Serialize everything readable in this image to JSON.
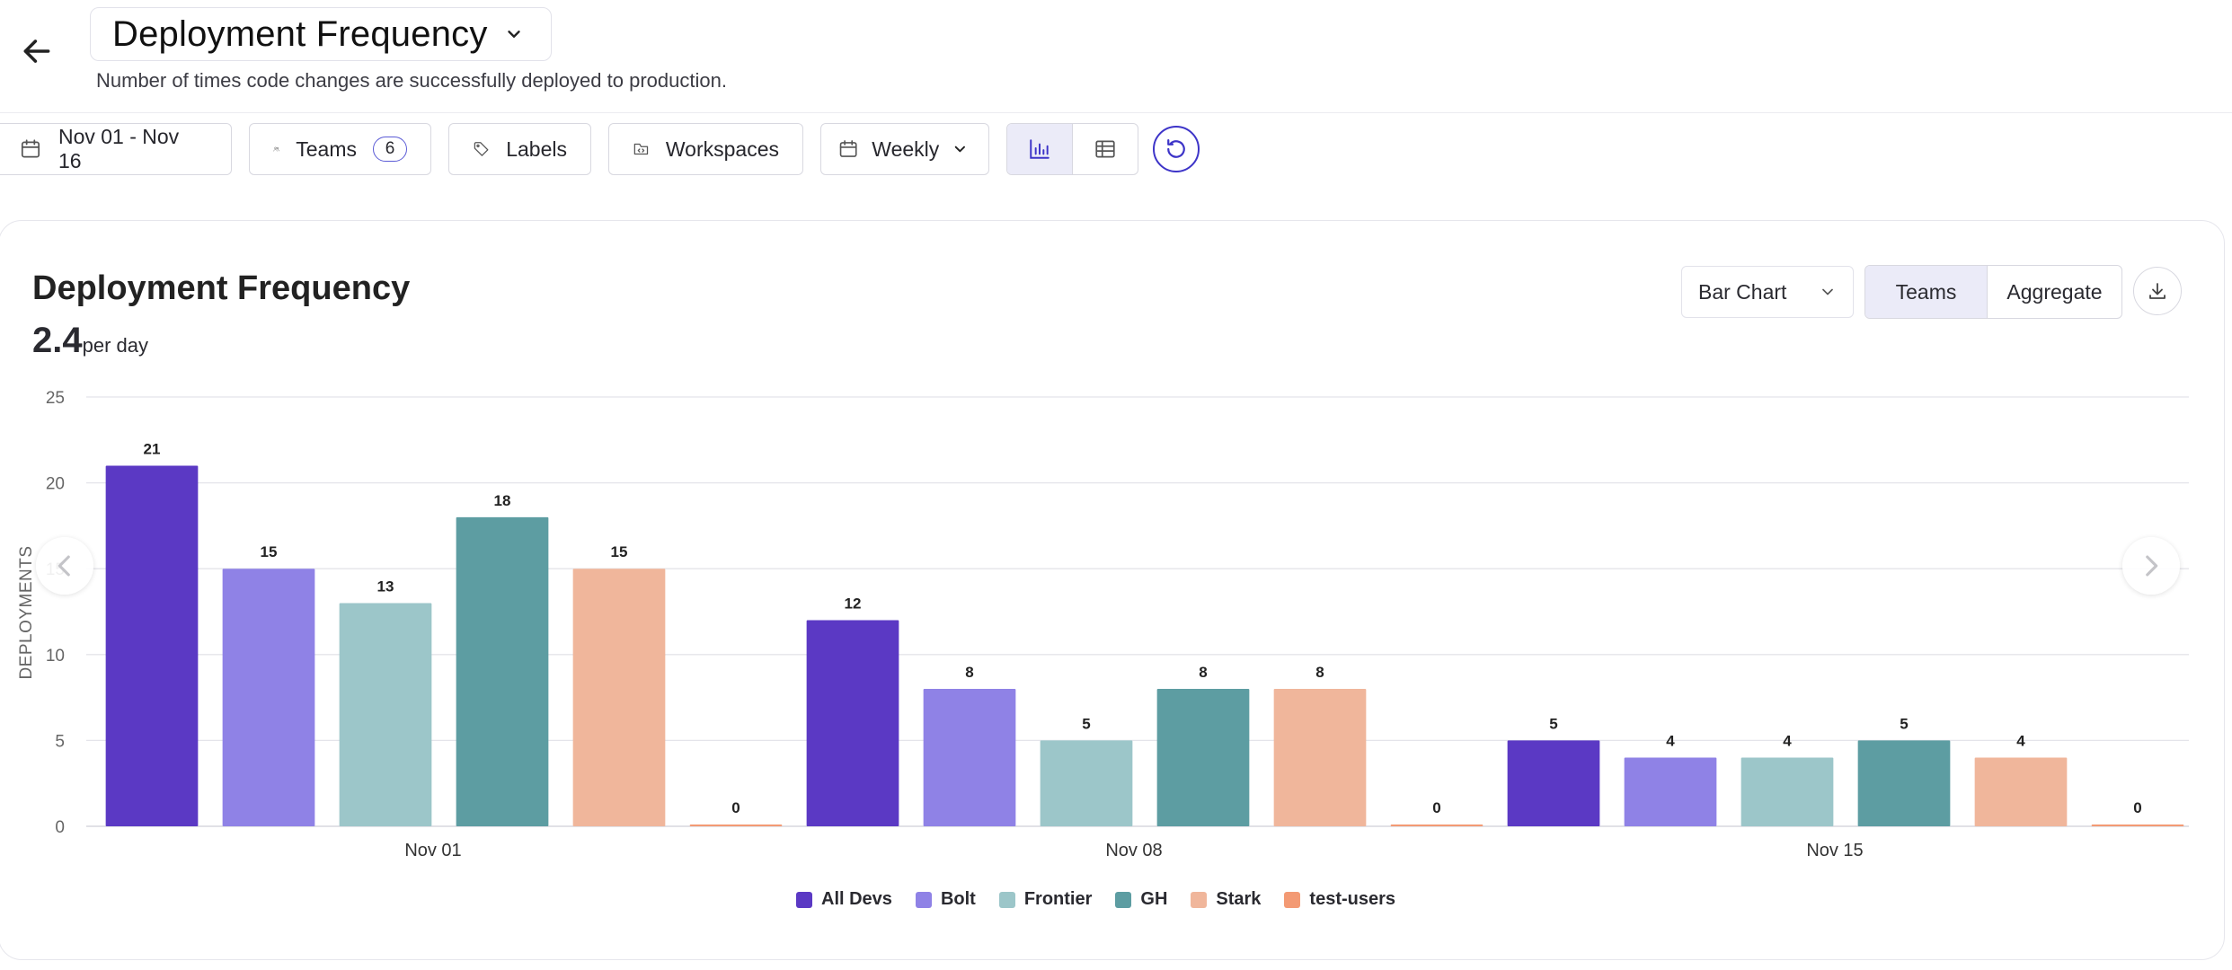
{
  "header": {
    "title": "Deployment Frequency",
    "subtitle": "Number of times code changes are successfully deployed to production."
  },
  "filters": {
    "date_range": "Nov 01 - Nov 16",
    "teams_label": "Teams",
    "teams_count": "6",
    "labels_label": "Labels",
    "workspaces_label": "Workspaces",
    "interval": "Weekly"
  },
  "card": {
    "title": "Deployment Frequency",
    "metric_value": "2.4",
    "metric_unit": "per day",
    "chart_type": "Bar Chart",
    "seg_teams": "Teams",
    "seg_aggregate": "Aggregate"
  },
  "colors": {
    "All Devs": "#5b39c4",
    "Bolt": "#8f82e6",
    "Frontier": "#9cc6c9",
    "GH": "#5d9da2",
    "Stark": "#f0b69b",
    "test-users": "#f39a74"
  },
  "icons": [
    "arrow-left-icon",
    "chevron-down-icon",
    "calendar-icon",
    "users-icon",
    "tag-icon",
    "folder-code-icon",
    "bar-chart-icon",
    "table-icon",
    "reset-icon",
    "download-icon",
    "chevron-left-icon",
    "chevron-right-icon"
  ],
  "chart_data": {
    "type": "bar",
    "ylabel": "DEPLOYMENTS",
    "ylim": [
      0,
      25
    ],
    "yticks": [
      0,
      5,
      10,
      15,
      20,
      25
    ],
    "categories": [
      "Nov 01",
      "Nov 08",
      "Nov 15"
    ],
    "grid": true,
    "legend_position": "bottom",
    "series": [
      {
        "name": "All Devs",
        "values": [
          21,
          12,
          5
        ]
      },
      {
        "name": "Bolt",
        "values": [
          15,
          8,
          4
        ]
      },
      {
        "name": "Frontier",
        "values": [
          13,
          5,
          4
        ]
      },
      {
        "name": "GH",
        "values": [
          18,
          8,
          5
        ]
      },
      {
        "name": "Stark",
        "values": [
          15,
          8,
          4
        ]
      },
      {
        "name": "test-users",
        "values": [
          0,
          0,
          0
        ]
      }
    ]
  }
}
